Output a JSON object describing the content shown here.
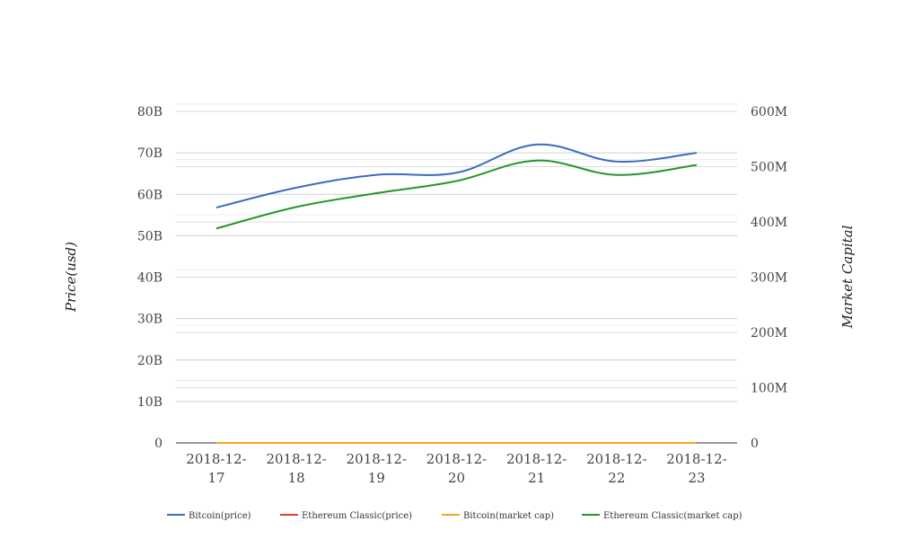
{
  "chart_data": {
    "type": "line",
    "categories": [
      "2018-12-17",
      "2018-12-18",
      "2018-12-19",
      "2018-12-20",
      "2018-12-21",
      "2018-12-22",
      "2018-12-23"
    ],
    "y_left": {
      "label": "Price(usd)",
      "range": [
        0,
        80000000000
      ],
      "ticks": [
        {
          "value": 0,
          "label": "0"
        },
        {
          "value": 10000000000,
          "label": "10B"
        },
        {
          "value": 20000000000,
          "label": "20B"
        },
        {
          "value": 30000000000,
          "label": "30B"
        },
        {
          "value": 40000000000,
          "label": "40B"
        },
        {
          "value": 50000000000,
          "label": "50B"
        },
        {
          "value": 60000000000,
          "label": "60B"
        },
        {
          "value": 70000000000,
          "label": "70B"
        },
        {
          "value": 80000000000,
          "label": "80B"
        }
      ]
    },
    "y_right": {
      "label": "Market Capital",
      "range": [
        0,
        600000000
      ],
      "ticks": [
        {
          "value": 0,
          "label": "0"
        },
        {
          "value": 100000000,
          "label": "100M"
        },
        {
          "value": 200000000,
          "label": "200M"
        },
        {
          "value": 300000000,
          "label": "300M"
        },
        {
          "value": 400000000,
          "label": "400M"
        },
        {
          "value": 500000000,
          "label": "500M"
        },
        {
          "value": 600000000,
          "label": "600M"
        }
      ]
    },
    "grid": true,
    "legend_position": "bottom",
    "series": [
      {
        "name": "Bitcoin(price)",
        "color": "#3d6bbd",
        "axis": "left",
        "values": [
          56800000000,
          61600000000,
          64700000000,
          65200000000,
          72000000000,
          67900000000,
          70000000000
        ]
      },
      {
        "name": "Ethereum Classic(price)",
        "color": "#d9442a",
        "axis": "left",
        "values": [
          4.4,
          4.6,
          4.9,
          5.1,
          5.6,
          5.3,
          5.4
        ]
      },
      {
        "name": "Bitcoin(market cap)",
        "color": "#f5a623",
        "axis": "right",
        "values": [
          3900,
          3600,
          3800,
          4100,
          3900,
          3900,
          4000
        ]
      },
      {
        "name": "Ethereum Classic(market cap)",
        "color": "#27952b",
        "axis": "right",
        "values": [
          388000000,
          427000000,
          452000000,
          474000000,
          511000000,
          485000000,
          503000000
        ]
      }
    ]
  }
}
